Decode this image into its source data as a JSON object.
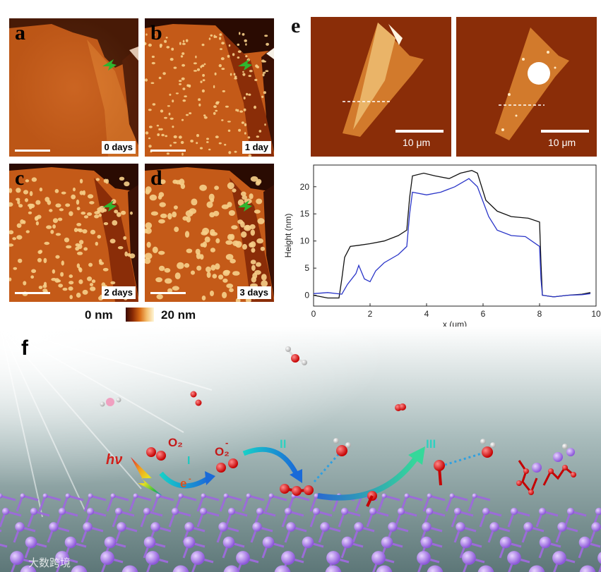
{
  "panels": {
    "a": {
      "label": "a",
      "time": "0 days"
    },
    "b": {
      "label": "b",
      "time": "1 day"
    },
    "c": {
      "label": "c",
      "time": "2 days"
    },
    "d": {
      "label": "d",
      "time": "3 days"
    },
    "e": {
      "label": "e",
      "scale_left": "10 μm",
      "scale_right": "10 μm"
    },
    "f": {
      "label": "f"
    }
  },
  "colorbar": {
    "min_label": "0 nm",
    "max_label": "20 nm",
    "colors": [
      "#3a0b02",
      "#8a2a05",
      "#d86a14",
      "#f4c070",
      "#fff6d8"
    ]
  },
  "schematic": {
    "hv": "hν",
    "o2": "O₂",
    "o2_minus": "O₂",
    "o2_minus_sup": "-",
    "electron": "e",
    "electron_sup": "-",
    "step_1": "I",
    "step_2": "II",
    "step_3": "III"
  },
  "watermark": "大数跨境",
  "chart_data": {
    "type": "line",
    "xlabel": "x (μm)",
    "ylabel": "Height (nm)",
    "xlim": [
      0,
      10
    ],
    "ylim": [
      -2,
      24
    ],
    "xticks": [
      0,
      2,
      4,
      6,
      8,
      10
    ],
    "yticks": [
      0,
      5,
      10,
      15,
      20
    ],
    "series": [
      {
        "color": "#111111",
        "x": [
          0,
          0.5,
          0.9,
          1.0,
          1.1,
          1.3,
          1.6,
          2.0,
          2.5,
          3.0,
          3.3,
          3.4,
          3.5,
          3.9,
          4.3,
          4.8,
          5.2,
          5.6,
          5.8,
          6.1,
          6.5,
          7.0,
          7.6,
          8.0,
          8.05,
          8.1,
          8.5,
          9.0,
          9.5,
          9.8
        ],
        "y": [
          0,
          -0.5,
          -0.5,
          3,
          7,
          9,
          9.2,
          9.5,
          10,
          11,
          12,
          18,
          22,
          22.5,
          22,
          21.5,
          22.5,
          23,
          22.5,
          17.5,
          15.5,
          14.5,
          14.2,
          13.5,
          6,
          0,
          -0.3,
          0,
          0.2,
          0.5
        ]
      },
      {
        "color": "#2a35c8",
        "x": [
          0,
          0.5,
          1.0,
          1.2,
          1.5,
          1.6,
          1.8,
          2.0,
          2.2,
          2.5,
          3.0,
          3.3,
          3.4,
          3.5,
          4.0,
          4.5,
          5.0,
          5.5,
          5.8,
          6.2,
          6.5,
          7.0,
          7.5,
          8.0,
          8.05,
          8.1,
          8.5,
          9.0,
          9.5,
          9.8
        ],
        "y": [
          0.3,
          0.5,
          0.2,
          2,
          4,
          5.5,
          3,
          2.5,
          4.5,
          6,
          7.5,
          9,
          15,
          19,
          18.5,
          19,
          20,
          21.5,
          20,
          14.5,
          12,
          11,
          10.8,
          9,
          3,
          0,
          -0.3,
          0,
          0.1,
          0.3
        ]
      }
    ]
  }
}
